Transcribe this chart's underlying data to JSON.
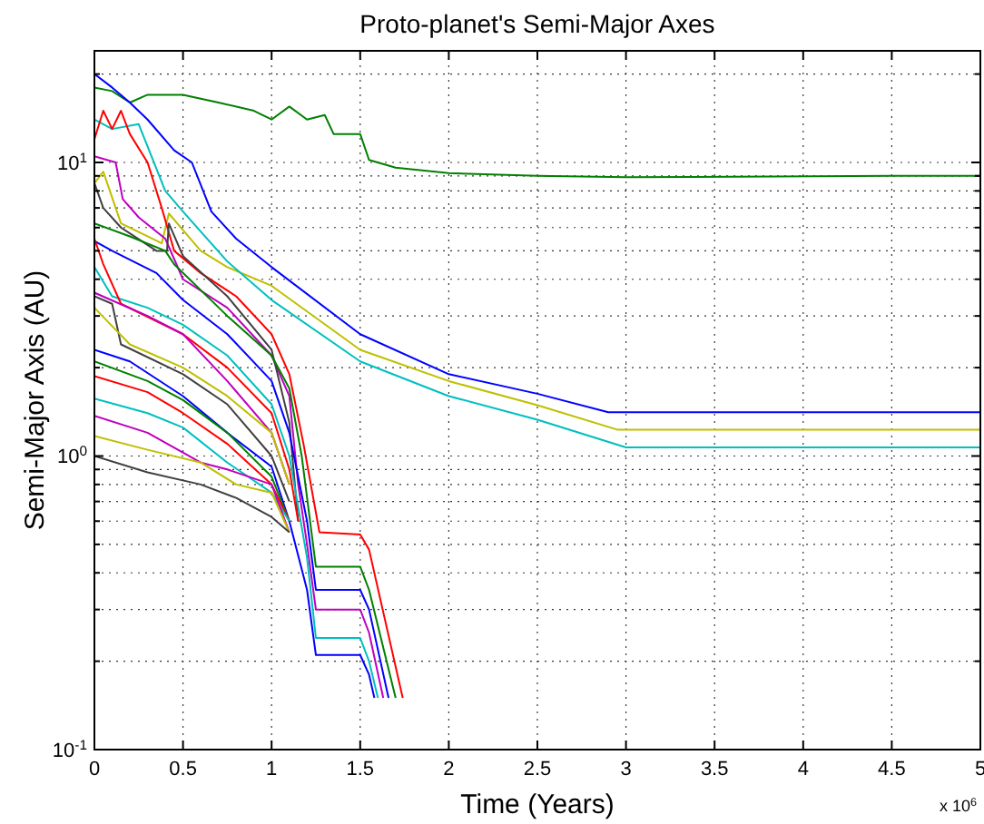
{
  "chart_data": {
    "type": "line",
    "title": "Proto-planet's Semi-Major Axes",
    "xlabel": "Time (Years)",
    "ylabel": "Semi-Major Axis (AU)",
    "annotations": [
      "x 10$^{6}$"
    ],
    "log": "y",
    "grid": true,
    "xlim": [
      0,
      5
    ],
    "ylim": [
      0.1,
      24
    ],
    "xticks": [
      0,
      0.5,
      1,
      1.5,
      2,
      2.5,
      3,
      3.5,
      4,
      4.5,
      5
    ],
    "yticks": [
      {
        "value": 0.1,
        "label": "10$^{-1}$"
      },
      {
        "value": 0.2,
        "label": null
      },
      {
        "value": 0.3,
        "label": null
      },
      {
        "value": 0.4,
        "label": null
      },
      {
        "value": 0.5,
        "label": null
      },
      {
        "value": 0.6,
        "label": null
      },
      {
        "value": 0.7,
        "label": null
      },
      {
        "value": 0.8,
        "label": null
      },
      {
        "value": 0.9,
        "label": null
      },
      {
        "value": 1,
        "label": "10$^{0}$"
      },
      {
        "value": 2,
        "label": null
      },
      {
        "value": 3,
        "label": null
      },
      {
        "value": 4,
        "label": null
      },
      {
        "value": 5,
        "label": null
      },
      {
        "value": 6,
        "label": null
      },
      {
        "value": 7,
        "label": null
      },
      {
        "value": 8,
        "label": null
      },
      {
        "value": 9,
        "label": null
      },
      {
        "value": 10,
        "label": "10$^{1}$"
      },
      {
        "value": 20,
        "label": null
      }
    ],
    "series": [
      {
        "color": "#008000",
        "x": [
          0,
          0.1,
          0.2,
          0.3,
          0.5,
          0.7,
          0.9,
          1.0,
          1.1,
          1.2,
          1.3,
          1.35,
          1.5,
          1.55,
          1.7,
          2.0,
          2.5,
          3.0,
          4.5,
          5.0
        ],
        "values": [
          18,
          17.5,
          16,
          17,
          17,
          16,
          15,
          14,
          15.5,
          14,
          14.5,
          12.5,
          12.5,
          10.2,
          9.6,
          9.2,
          9.0,
          8.9,
          9.0,
          9.0
        ]
      },
      {
        "color": "#0000ff",
        "x": [
          0,
          0.1,
          0.2,
          0.3,
          0.45,
          0.55,
          0.66,
          0.8,
          1.0,
          1.5,
          2.0,
          2.5,
          2.9,
          5.0
        ],
        "values": [
          20,
          18,
          16,
          14,
          11,
          10,
          6.8,
          5.5,
          4.4,
          2.6,
          1.9,
          1.63,
          1.41,
          1.41
        ]
      },
      {
        "color": "#bfbf00",
        "x": [
          0,
          0.05,
          0.15,
          0.3,
          0.38,
          0.42,
          0.6,
          0.75,
          1.0,
          1.5,
          2.0,
          2.5,
          2.95,
          5.0
        ],
        "values": [
          8.5,
          9.3,
          6.2,
          5.6,
          5.3,
          6.7,
          5.0,
          4.4,
          3.8,
          2.3,
          1.8,
          1.49,
          1.23,
          1.23
        ]
      },
      {
        "color": "#00bfbf",
        "x": [
          0,
          0.1,
          0.25,
          0.4,
          0.5,
          0.75,
          1.0,
          1.5,
          2.0,
          2.5,
          3.0,
          5.0
        ],
        "values": [
          14,
          13,
          13.5,
          8.0,
          6.8,
          4.6,
          3.4,
          2.1,
          1.6,
          1.33,
          1.07,
          1.07
        ]
      },
      {
        "color": "#ff0000",
        "x": [
          0,
          0.05,
          0.1,
          0.15,
          0.2,
          0.3,
          0.38,
          0.45,
          0.6,
          0.8,
          1.0,
          1.1,
          1.18,
          1.27,
          1.5,
          1.55,
          1.74
        ],
        "values": [
          12,
          15,
          13,
          15,
          12.5,
          10,
          7,
          5,
          4.2,
          3.5,
          2.6,
          1.9,
          1.1,
          0.55,
          0.54,
          0.48,
          0.15
        ]
      },
      {
        "color": "#bf00bf",
        "x": [
          0,
          0.12,
          0.16,
          0.25,
          0.4,
          0.5,
          0.75,
          1.0,
          1.1,
          1.15,
          1.2,
          1.25,
          1.5,
          1.55,
          1.63
        ],
        "values": [
          10.5,
          10,
          7.5,
          6.5,
          5.5,
          4.0,
          3.2,
          2.2,
          1.6,
          0.8,
          0.5,
          0.3,
          0.3,
          0.25,
          0.15
        ]
      },
      {
        "color": "#404040",
        "x": [
          0,
          0.05,
          0.15,
          0.35,
          0.41,
          0.42,
          0.5,
          0.75,
          1.0,
          1.1,
          1.15
        ],
        "values": [
          8.5,
          7,
          6,
          5.0,
          5.0,
          6.2,
          4.8,
          3.5,
          2.3,
          1.3,
          0.6
        ]
      },
      {
        "color": "#008000",
        "x": [
          0,
          0.2,
          0.4,
          0.45,
          0.75,
          1.0,
          1.1,
          1.17,
          1.25,
          1.5,
          1.55,
          1.7
        ],
        "values": [
          6.2,
          5.6,
          5.0,
          4.5,
          3.0,
          2.2,
          1.7,
          1.0,
          0.42,
          0.42,
          0.35,
          0.15
        ]
      },
      {
        "color": "#0000ff",
        "x": [
          0,
          0.1,
          0.35,
          0.5,
          0.75,
          1.0,
          1.1,
          1.2,
          1.25,
          1.5,
          1.55,
          1.66
        ],
        "values": [
          5.4,
          5.0,
          4.2,
          3.4,
          2.6,
          1.8,
          1.2,
          0.6,
          0.35,
          0.35,
          0.3,
          0.15
        ]
      },
      {
        "color": "#00bfbf",
        "x": [
          0,
          0.1,
          0.3,
          0.5,
          0.75,
          1.0,
          1.1,
          1.2,
          1.25,
          1.5,
          1.55,
          1.6
        ],
        "values": [
          4.4,
          3.5,
          3.2,
          2.8,
          2.2,
          1.5,
          1.0,
          0.45,
          0.24,
          0.24,
          0.2,
          0.15
        ]
      },
      {
        "color": "#ff0000",
        "x": [
          0,
          0.05,
          0.15,
          0.5,
          0.75,
          1.0,
          1.1,
          1.15
        ],
        "values": [
          5.5,
          4.5,
          3.3,
          2.6,
          2.0,
          1.4,
          0.9,
          0.6
        ]
      },
      {
        "color": "#bf00bf",
        "x": [
          0,
          0.3,
          0.5,
          0.75,
          1.0,
          1.1
        ],
        "values": [
          3.6,
          3.0,
          2.6,
          1.8,
          1.2,
          0.8
        ]
      },
      {
        "color": "#404040",
        "x": [
          0,
          0.1,
          0.15,
          0.5,
          0.75,
          1.0,
          1.1
        ],
        "values": [
          3.5,
          3.3,
          2.4,
          1.9,
          1.5,
          1.0,
          0.7
        ]
      },
      {
        "color": "#bfbf00",
        "x": [
          0,
          0.2,
          0.5,
          0.75,
          1.0,
          1.1
        ],
        "values": [
          3.2,
          2.4,
          2.0,
          1.6,
          1.2,
          0.8
        ]
      },
      {
        "color": "#0000ff",
        "x": [
          0,
          0.2,
          0.5,
          0.75,
          1.0,
          1.1,
          1.2,
          1.25,
          1.5,
          1.55,
          1.58
        ],
        "values": [
          2.3,
          2.1,
          1.6,
          1.2,
          0.92,
          0.6,
          0.35,
          0.21,
          0.21,
          0.18,
          0.15
        ]
      },
      {
        "color": "#008000",
        "x": [
          0,
          0.3,
          0.5,
          0.75,
          1.0,
          1.1
        ],
        "values": [
          2.1,
          1.8,
          1.55,
          1.2,
          0.85,
          0.6
        ]
      },
      {
        "color": "#ff0000",
        "x": [
          0,
          0.3,
          0.5,
          0.75,
          1.0,
          1.1
        ],
        "values": [
          1.87,
          1.65,
          1.4,
          1.1,
          0.8,
          0.6
        ]
      },
      {
        "color": "#00bfbf",
        "x": [
          0,
          0.3,
          0.5,
          0.75,
          1.0,
          1.1
        ],
        "values": [
          1.57,
          1.4,
          1.25,
          0.95,
          0.75,
          0.6
        ]
      },
      {
        "color": "#bf00bf",
        "x": [
          0,
          0.3,
          0.6,
          0.75,
          1.0,
          1.1
        ],
        "values": [
          1.37,
          1.2,
          0.95,
          0.9,
          0.8,
          0.55
        ]
      },
      {
        "color": "#bfbf00",
        "x": [
          0,
          0.3,
          0.6,
          0.8,
          1.0,
          1.1
        ],
        "values": [
          1.17,
          1.05,
          0.95,
          0.8,
          0.75,
          0.55
        ]
      },
      {
        "color": "#404040",
        "x": [
          0,
          0.3,
          0.6,
          0.8,
          1.0,
          1.1
        ],
        "values": [
          1.0,
          0.88,
          0.8,
          0.72,
          0.62,
          0.55
        ]
      }
    ]
  }
}
